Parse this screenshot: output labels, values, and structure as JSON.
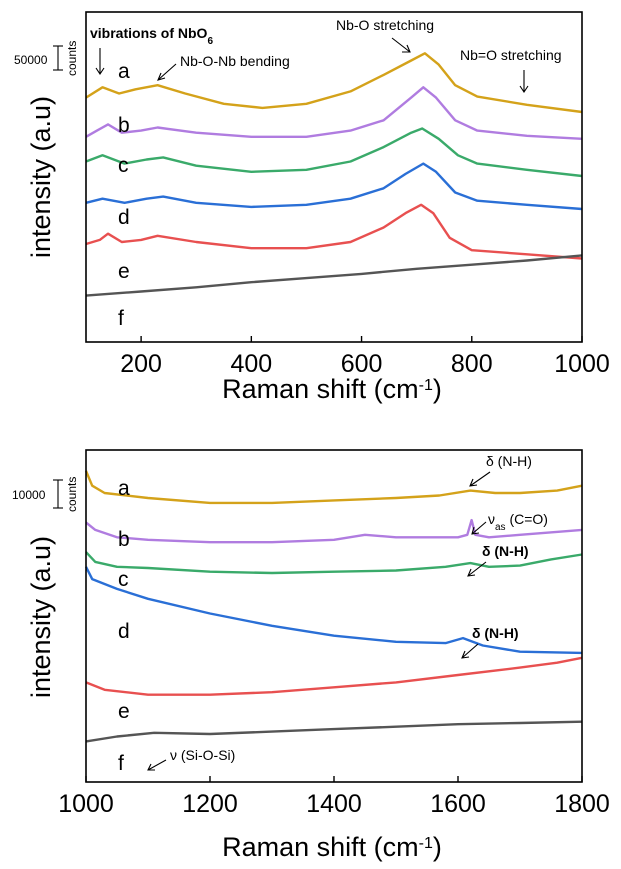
{
  "chart_data": [
    {
      "type": "line",
      "xlabel": "Raman shift (cm",
      "xlabel_sup": "-1",
      "xlabel_end": ")",
      "ylabel": "intensity (a.u)",
      "xlim": [
        100,
        1000
      ],
      "xticks": [
        200,
        400,
        600,
        800,
        1000
      ],
      "scale_bar": {
        "value": "50000",
        "unit": "counts"
      },
      "series": [
        {
          "label": "a",
          "color": "#d4a21a",
          "points": [
            [
              100,
              1.62
            ],
            [
              130,
              1.72
            ],
            [
              160,
              1.66
            ],
            [
              190,
              1.7
            ],
            [
              230,
              1.74
            ],
            [
              280,
              1.66
            ],
            [
              350,
              1.56
            ],
            [
              420,
              1.52
            ],
            [
              500,
              1.56
            ],
            [
              580,
              1.68
            ],
            [
              640,
              1.84
            ],
            [
              690,
              1.98
            ],
            [
              715,
              2.05
            ],
            [
              740,
              1.94
            ],
            [
              770,
              1.74
            ],
            [
              810,
              1.63
            ],
            [
              900,
              1.55
            ],
            [
              1000,
              1.48
            ]
          ]
        },
        {
          "label": "b",
          "color": "#b07ce0",
          "points": [
            [
              100,
              1.24
            ],
            [
              120,
              1.3
            ],
            [
              140,
              1.36
            ],
            [
              165,
              1.28
            ],
            [
              200,
              1.3
            ],
            [
              230,
              1.33
            ],
            [
              300,
              1.28
            ],
            [
              400,
              1.24
            ],
            [
              500,
              1.24
            ],
            [
              580,
              1.3
            ],
            [
              640,
              1.4
            ],
            [
              690,
              1.62
            ],
            [
              712,
              1.72
            ],
            [
              735,
              1.62
            ],
            [
              770,
              1.4
            ],
            [
              810,
              1.3
            ],
            [
              900,
              1.25
            ],
            [
              1000,
              1.22
            ]
          ]
        },
        {
          "label": "c",
          "color": "#3aaa6a",
          "points": [
            [
              100,
              1.0
            ],
            [
              130,
              1.06
            ],
            [
              170,
              0.98
            ],
            [
              210,
              1.02
            ],
            [
              240,
              1.04
            ],
            [
              300,
              0.96
            ],
            [
              400,
              0.9
            ],
            [
              500,
              0.92
            ],
            [
              580,
              1.0
            ],
            [
              640,
              1.14
            ],
            [
              690,
              1.28
            ],
            [
              710,
              1.32
            ],
            [
              740,
              1.22
            ],
            [
              775,
              1.06
            ],
            [
              810,
              0.98
            ],
            [
              900,
              0.92
            ],
            [
              1000,
              0.86
            ]
          ]
        },
        {
          "label": "d",
          "color": "#2a6fd6",
          "points": [
            [
              100,
              0.6
            ],
            [
              130,
              0.64
            ],
            [
              170,
              0.6
            ],
            [
              210,
              0.64
            ],
            [
              240,
              0.66
            ],
            [
              300,
              0.6
            ],
            [
              400,
              0.56
            ],
            [
              500,
              0.58
            ],
            [
              580,
              0.64
            ],
            [
              640,
              0.74
            ],
            [
              680,
              0.88
            ],
            [
              712,
              0.98
            ],
            [
              735,
              0.9
            ],
            [
              770,
              0.7
            ],
            [
              810,
              0.62
            ],
            [
              900,
              0.58
            ],
            [
              1000,
              0.54
            ]
          ]
        },
        {
          "label": "e",
          "color": "#e85050",
          "points": [
            [
              100,
              0.2
            ],
            [
              125,
              0.24
            ],
            [
              140,
              0.3
            ],
            [
              165,
              0.22
            ],
            [
              200,
              0.24
            ],
            [
              230,
              0.28
            ],
            [
              300,
              0.22
            ],
            [
              400,
              0.16
            ],
            [
              500,
              0.16
            ],
            [
              580,
              0.22
            ],
            [
              640,
              0.36
            ],
            [
              680,
              0.5
            ],
            [
              708,
              0.58
            ],
            [
              730,
              0.5
            ],
            [
              760,
              0.26
            ],
            [
              800,
              0.14
            ],
            [
              900,
              0.1
            ],
            [
              1000,
              0.06
            ]
          ]
        },
        {
          "label": "f",
          "color": "#555555",
          "points": [
            [
              100,
              -0.3
            ],
            [
              200,
              -0.26
            ],
            [
              300,
              -0.22
            ],
            [
              400,
              -0.17
            ],
            [
              500,
              -0.13
            ],
            [
              600,
              -0.09
            ],
            [
              700,
              -0.04
            ],
            [
              800,
              0.0
            ],
            [
              900,
              0.04
            ],
            [
              1000,
              0.09
            ]
          ]
        }
      ],
      "annotations": [
        {
          "text": "vibrations of NbO",
          "sub": "6"
        },
        {
          "text": "Nb-O-Nb bending"
        },
        {
          "text": "Nb-O stretching"
        },
        {
          "text": "Nb=O stretching"
        }
      ]
    },
    {
      "type": "line",
      "xlabel": "Raman shift (cm",
      "xlabel_sup": "-1",
      "xlabel_end": ")",
      "ylabel": "intensity (a.u)",
      "xlim": [
        1000,
        1800
      ],
      "xticks": [
        1000,
        1200,
        1400,
        1600,
        1800
      ],
      "scale_bar": {
        "value": "10000",
        "unit": "counts"
      },
      "series": [
        {
          "label": "a",
          "color": "#d4a21a",
          "points": [
            [
              1000,
              1.78
            ],
            [
              1010,
              1.66
            ],
            [
              1030,
              1.6
            ],
            [
              1100,
              1.56
            ],
            [
              1200,
              1.52
            ],
            [
              1300,
              1.52
            ],
            [
              1400,
              1.54
            ],
            [
              1500,
              1.56
            ],
            [
              1570,
              1.58
            ],
            [
              1620,
              1.62
            ],
            [
              1660,
              1.6
            ],
            [
              1700,
              1.6
            ],
            [
              1760,
              1.62
            ],
            [
              1800,
              1.66
            ]
          ]
        },
        {
          "label": "b",
          "color": "#b07ce0",
          "points": [
            [
              1000,
              1.36
            ],
            [
              1015,
              1.3
            ],
            [
              1050,
              1.24
            ],
            [
              1100,
              1.22
            ],
            [
              1200,
              1.2
            ],
            [
              1300,
              1.2
            ],
            [
              1400,
              1.22
            ],
            [
              1450,
              1.26
            ],
            [
              1500,
              1.24
            ],
            [
              1600,
              1.24
            ],
            [
              1615,
              1.26
            ],
            [
              1622,
              1.38
            ],
            [
              1628,
              1.26
            ],
            [
              1650,
              1.24
            ],
            [
              1700,
              1.26
            ],
            [
              1800,
              1.3
            ]
          ]
        },
        {
          "label": "c",
          "color": "#3aaa6a",
          "points": [
            [
              1000,
              1.12
            ],
            [
              1015,
              1.04
            ],
            [
              1050,
              1.0
            ],
            [
              1100,
              0.99
            ],
            [
              1200,
              0.96
            ],
            [
              1300,
              0.95
            ],
            [
              1400,
              0.96
            ],
            [
              1500,
              0.97
            ],
            [
              1580,
              1.0
            ],
            [
              1620,
              1.03
            ],
            [
              1650,
              1.0
            ],
            [
              1700,
              1.01
            ],
            [
              1750,
              1.06
            ],
            [
              1800,
              1.1
            ]
          ]
        },
        {
          "label": "d",
          "color": "#2a6fd6",
          "points": [
            [
              1000,
              1.0
            ],
            [
              1010,
              0.9
            ],
            [
              1050,
              0.82
            ],
            [
              1100,
              0.74
            ],
            [
              1200,
              0.62
            ],
            [
              1300,
              0.52
            ],
            [
              1400,
              0.44
            ],
            [
              1500,
              0.39
            ],
            [
              1580,
              0.38
            ],
            [
              1608,
              0.42
            ],
            [
              1640,
              0.36
            ],
            [
              1700,
              0.31
            ],
            [
              1800,
              0.3
            ]
          ]
        },
        {
          "label": "e",
          "color": "#e85050",
          "points": [
            [
              1000,
              0.06
            ],
            [
              1030,
              0.0
            ],
            [
              1100,
              -0.04
            ],
            [
              1200,
              -0.04
            ],
            [
              1300,
              -0.02
            ],
            [
              1400,
              0.02
            ],
            [
              1500,
              0.06
            ],
            [
              1600,
              0.12
            ],
            [
              1700,
              0.18
            ],
            [
              1760,
              0.22
            ],
            [
              1800,
              0.26
            ]
          ]
        },
        {
          "label": "f",
          "color": "#555555",
          "points": [
            [
              1000,
              -0.42
            ],
            [
              1050,
              -0.38
            ],
            [
              1110,
              -0.35
            ],
            [
              1200,
              -0.36
            ],
            [
              1300,
              -0.34
            ],
            [
              1400,
              -0.32
            ],
            [
              1500,
              -0.3
            ],
            [
              1600,
              -0.28
            ],
            [
              1700,
              -0.27
            ],
            [
              1800,
              -0.26
            ]
          ]
        }
      ],
      "annotations": [
        {
          "text": "δ (N-H)"
        },
        {
          "text": "ν",
          "sub": "as",
          "tail": " (C=O)"
        },
        {
          "text": "δ (N-H)"
        },
        {
          "text": "δ (N-H)"
        },
        {
          "text": "ν (Si-O-Si)"
        }
      ]
    }
  ]
}
